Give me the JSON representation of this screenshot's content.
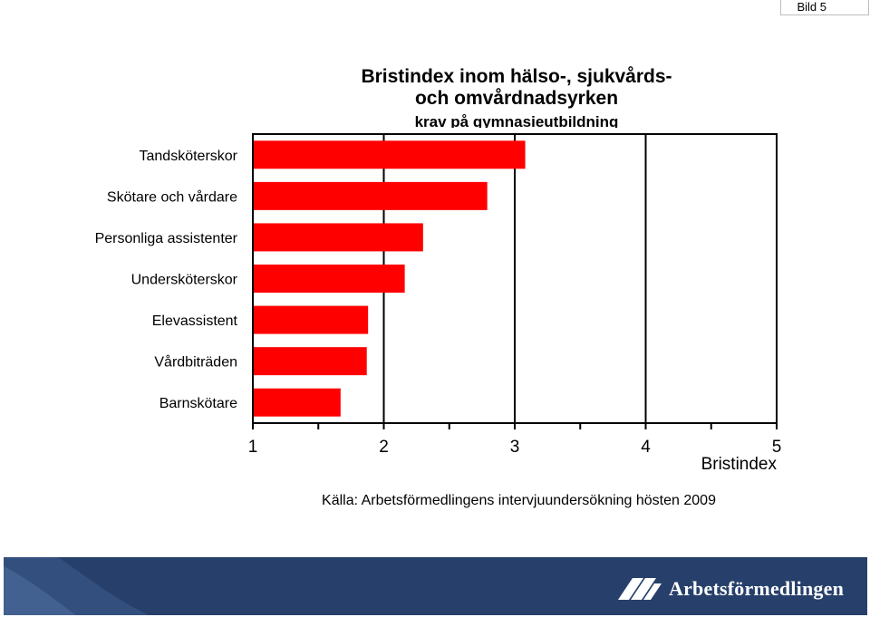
{
  "slide": {
    "label": "Bild 5"
  },
  "chart_data": {
    "type": "bar",
    "orientation": "horizontal",
    "title": "Bristindex inom hälso-, sjukvårds- och omvårdnadsyrken",
    "title_lines": [
      "Bristindex inom hälso-, sjukvårds-",
      "och omvårdnadsyrken"
    ],
    "subtitle": "krav på gymnasieutbildning",
    "categories": [
      "Tandsköterskor",
      "Skötare och vårdare",
      "Personliga assistenter",
      "Undersköterskor",
      "Elevassistent",
      "Vårdbiträden",
      "Barnskötare"
    ],
    "values": [
      3.08,
      2.79,
      2.3,
      2.16,
      1.88,
      1.87,
      1.67
    ],
    "xlabel": "Bristindex",
    "ylabel": "",
    "xlim": [
      1,
      5
    ],
    "xticks": [
      "1",
      "2",
      "3",
      "4",
      "5"
    ],
    "grid": "vertical",
    "bar_color": "#ff0000",
    "source": "Källa: Arbetsförmedlingens intervjuundersökning hösten 2009"
  },
  "footer": {
    "brand": "Arbetsförmedlingen",
    "background": "#26406b",
    "logo_icon": "arbetsformedlingen-logo-icon"
  }
}
